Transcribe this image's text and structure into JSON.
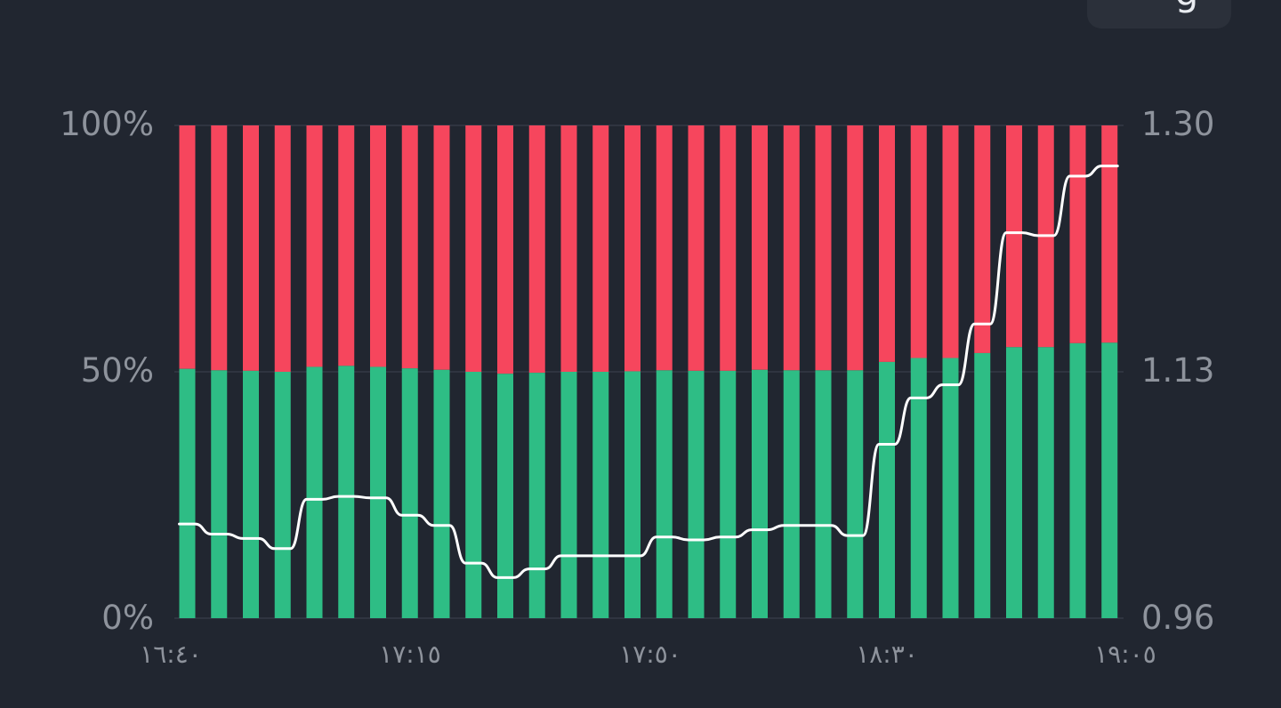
{
  "header": {
    "pill_glyph": "g"
  },
  "colors": {
    "background": "#212630",
    "long": "#2ebd85",
    "short": "#f6465d",
    "ratio_line": "#ffffff",
    "grid": "#2f3440",
    "tick_text": "#8e939c"
  },
  "chart_data": {
    "type": "bar",
    "stacked": true,
    "x_tick_labels": [
      "١٦:٤٠",
      "١٧:١٥",
      "١٧:٥٠",
      "١٨:٣٠",
      "١٩:٠٥"
    ],
    "y_left_ticks": [
      "0%",
      "50%",
      "100%"
    ],
    "y_left_range": [
      0,
      100
    ],
    "y_right_ticks": [
      "0.96",
      "1.13",
      "1.30"
    ],
    "y_right_range": [
      0.96,
      1.3
    ],
    "grid": true,
    "series": [
      {
        "key": "long",
        "values": [
          50.6,
          50.3,
          50.2,
          50.0,
          51.0,
          51.2,
          51.0,
          50.7,
          50.4,
          50.0,
          49.6,
          49.8,
          50.0,
          50.0,
          50.1,
          50.3,
          50.2,
          50.2,
          50.4,
          50.3,
          50.3,
          50.3,
          52.0,
          52.8,
          52.8,
          53.8,
          55.0,
          55.0,
          55.8,
          55.9
        ]
      },
      {
        "key": "short",
        "values": [
          49.4,
          49.7,
          49.8,
          50.0,
          49.0,
          48.8,
          49.0,
          49.3,
          49.6,
          50.0,
          50.4,
          50.2,
          50.0,
          50.0,
          49.9,
          49.7,
          49.8,
          49.8,
          49.6,
          49.7,
          49.7,
          49.7,
          48.0,
          47.2,
          47.2,
          46.2,
          45.0,
          45.0,
          44.2,
          44.1
        ]
      },
      {
        "key": "ratio",
        "axis": "right",
        "values": [
          1.025,
          1.018,
          1.015,
          1.008,
          1.042,
          1.044,
          1.043,
          1.031,
          1.024,
          0.998,
          0.988,
          0.994,
          1.003,
          1.003,
          1.003,
          1.016,
          1.014,
          1.016,
          1.021,
          1.024,
          1.024,
          1.017,
          1.08,
          1.112,
          1.121,
          1.163,
          1.226,
          1.224,
          1.265,
          1.272
        ]
      }
    ]
  }
}
